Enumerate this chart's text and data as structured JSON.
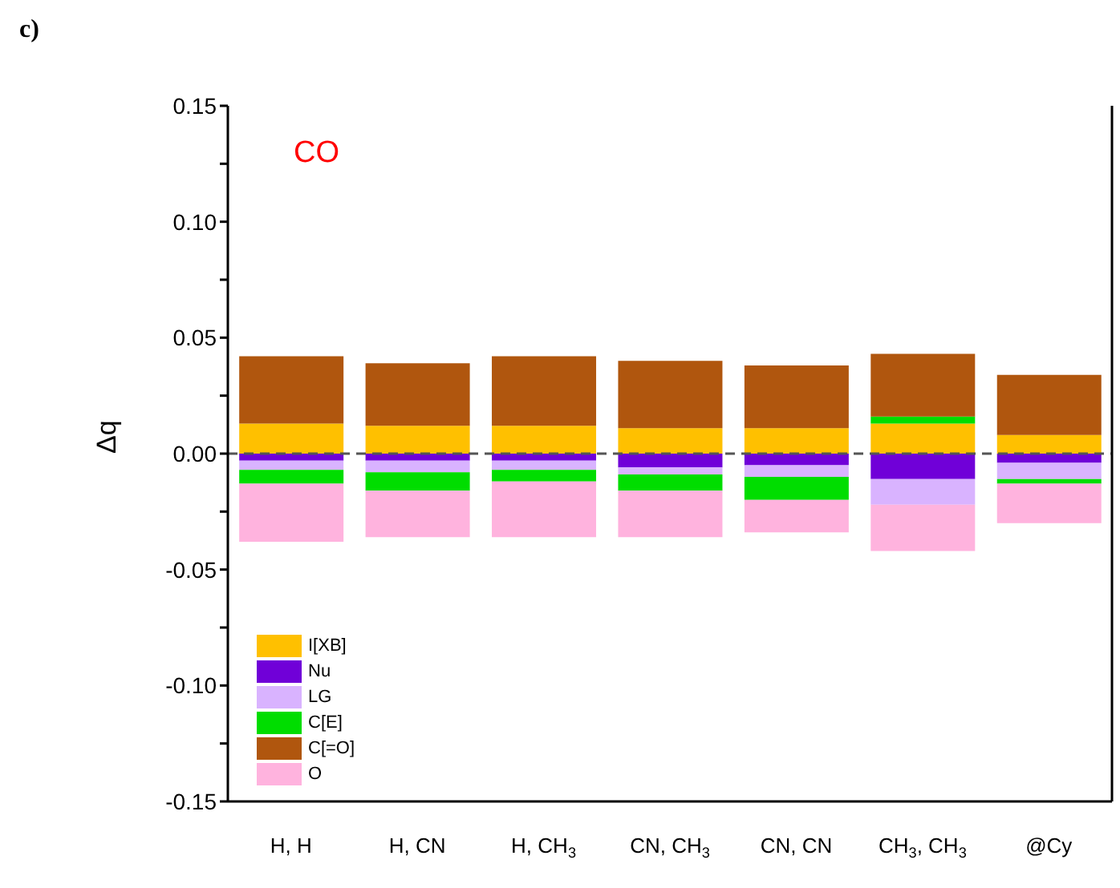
{
  "chart_data": {
    "type": "bar",
    "stacked": true,
    "categories": [
      "H, H",
      "H, CN",
      "H, CH$_{3}$",
      "CN, CH$_{3}$",
      "CN, CN",
      "CH$_{3}$, CH$_{3}$",
      "@Cy"
    ],
    "ylabel": "Δq",
    "annotations": [
      "c)",
      "CO"
    ],
    "series": [
      {
        "name": "I[XB]",
        "color": "#ffc000",
        "values": [
          0.013,
          0.012,
          0.012,
          0.011,
          0.011,
          0.013,
          0.008
        ]
      },
      {
        "name": "Nu",
        "color": "#7000d8",
        "values": [
          -0.003,
          -0.003,
          -0.003,
          -0.006,
          -0.005,
          -0.011,
          -0.004
        ]
      },
      {
        "name": "LG",
        "color": "#d9b3ff",
        "values": [
          -0.004,
          -0.005,
          -0.004,
          -0.003,
          -0.005,
          -0.011,
          -0.007
        ]
      },
      {
        "name": "C[E]",
        "color": "#00dd00",
        "values": [
          -0.006,
          -0.008,
          -0.005,
          -0.007,
          -0.01,
          0.003,
          -0.002
        ]
      },
      {
        "name": "C[=O]",
        "color": "#b0560e",
        "values": [
          0.029,
          0.027,
          0.03,
          0.029,
          0.027,
          0.027,
          0.026
        ]
      },
      {
        "name": "O",
        "color": "#ffb3de",
        "values": [
          -0.025,
          -0.02,
          -0.024,
          -0.02,
          -0.014,
          -0.02,
          -0.017
        ]
      }
    ],
    "ylim": [
      -0.15,
      0.15
    ],
    "yticks": [
      {
        "value": -0.15,
        "label": "-0.15"
      },
      {
        "value": -0.125,
        "label": null
      },
      {
        "value": -0.1,
        "label": "-0.10"
      },
      {
        "value": -0.075,
        "label": null
      },
      {
        "value": -0.05,
        "label": "-0.05"
      },
      {
        "value": -0.025,
        "label": null
      },
      {
        "value": 0,
        "label": "0.00"
      },
      {
        "value": 0.025,
        "label": null
      },
      {
        "value": 0.05,
        "label": "0.05"
      },
      {
        "value": 0.075,
        "label": null
      },
      {
        "value": 0.1,
        "label": "0.10"
      },
      {
        "value": 0.125,
        "label": null
      },
      {
        "value": 0.15,
        "label": "0.15"
      }
    ],
    "ref_lines": [
      {
        "axis": "y",
        "value": 0,
        "color": "#555555",
        "line_style": "dashed"
      }
    ],
    "legend": "bottom left",
    "grid": false
  }
}
